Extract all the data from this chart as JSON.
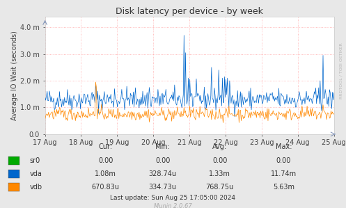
{
  "title": "Disk latency per device - by week",
  "ylabel": "Average IO Wait (seconds)",
  "bg_color": "#e8e8e8",
  "plot_bg_color": "#ffffff",
  "grid_color": "#ffaaaa",
  "x_labels": [
    "17 Aug",
    "18 Aug",
    "19 Aug",
    "20 Aug",
    "21 Aug",
    "22 Aug",
    "23 Aug",
    "24 Aug",
    "25 Aug"
  ],
  "ylim": [
    0.0,
    0.0044
  ],
  "yticks": [
    0.0,
    0.001,
    0.002,
    0.003,
    0.004
  ],
  "ytick_labels": [
    "0.0",
    "1.0 m",
    "2.0 m",
    "3.0 m",
    "4.0 m"
  ],
  "legend_items": [
    {
      "label": "sr0",
      "color": "#00aa00"
    },
    {
      "label": "vda",
      "color": "#0066cc"
    },
    {
      "label": "vdb",
      "color": "#ff8800"
    }
  ],
  "table_headers": [
    "Cur:",
    "Min:",
    "Avg:",
    "Max:"
  ],
  "table_data": [
    [
      "sr0",
      "0.00",
      "0.00",
      "0.00",
      "0.00"
    ],
    [
      "vda",
      "1.08m",
      "328.74u",
      "1.33m",
      "11.74m"
    ],
    [
      "vdb",
      "670.83u",
      "334.73u",
      "768.75u",
      "5.63m"
    ]
  ],
  "last_update": "Last update: Sun Aug 25 17:05:00 2024",
  "munin_version": "Munin 2.0.67",
  "rrdtool_label": "RRDTOOL / TOBI OETIKER",
  "n_points": 400,
  "seed": 42,
  "vda_base_mean": 0.0013,
  "vda_base_std": 0.0002,
  "vdb_base_mean": 0.00075,
  "vdb_base_std": 0.00012
}
